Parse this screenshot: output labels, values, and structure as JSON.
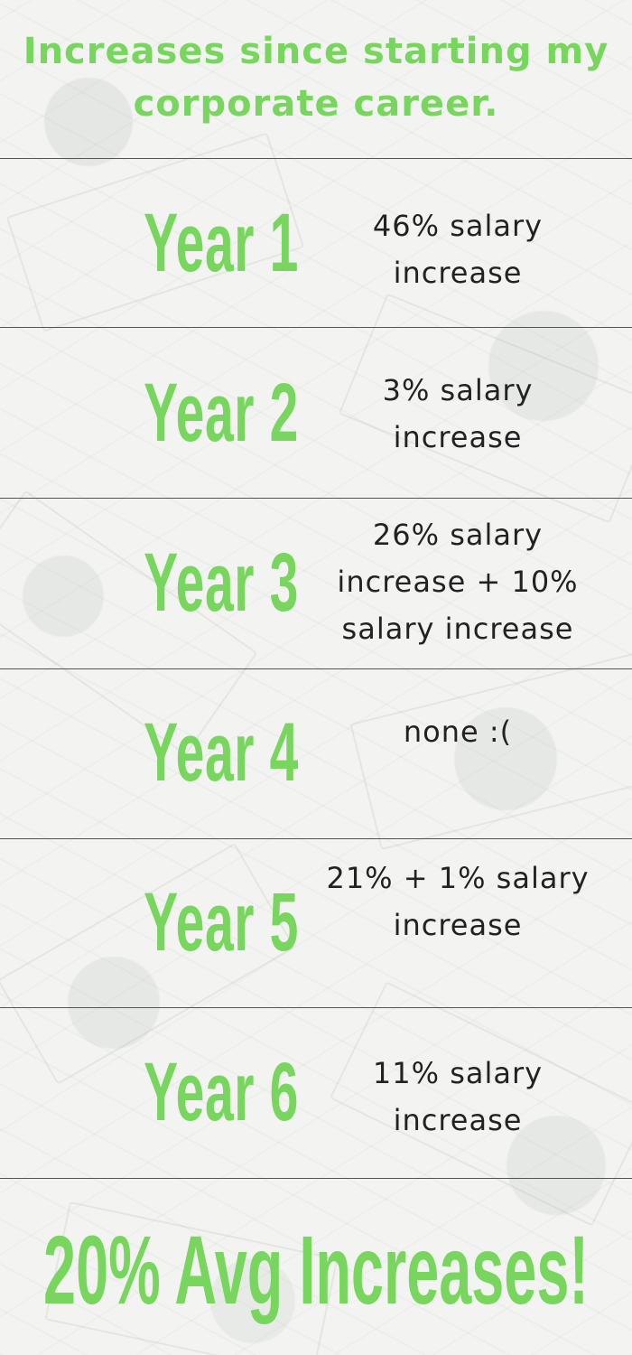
{
  "title": "Increases since starting my\ncorporate career.",
  "rows": [
    {
      "year": "Year 1",
      "desc": [
        "46% salary",
        "increase"
      ]
    },
    {
      "year": "Year 2",
      "desc": [
        "3% salary",
        "increase"
      ]
    },
    {
      "year": "Year 3",
      "desc": [
        "26% salary",
        "increase + 10%",
        "salary increase"
      ]
    },
    {
      "year": "Year 4",
      "desc": [
        "none :("
      ]
    },
    {
      "year": "Year 5",
      "desc": [
        "21% + 1% salary",
        "increase"
      ]
    },
    {
      "year": "Year 6",
      "desc": [
        "11% salary",
        "increase"
      ]
    }
  ],
  "summary": "20% Avg Increases!",
  "colors": {
    "accent": "#78d65e",
    "text": "#222222",
    "divider": "#555555",
    "background": "#f3f4f2"
  }
}
